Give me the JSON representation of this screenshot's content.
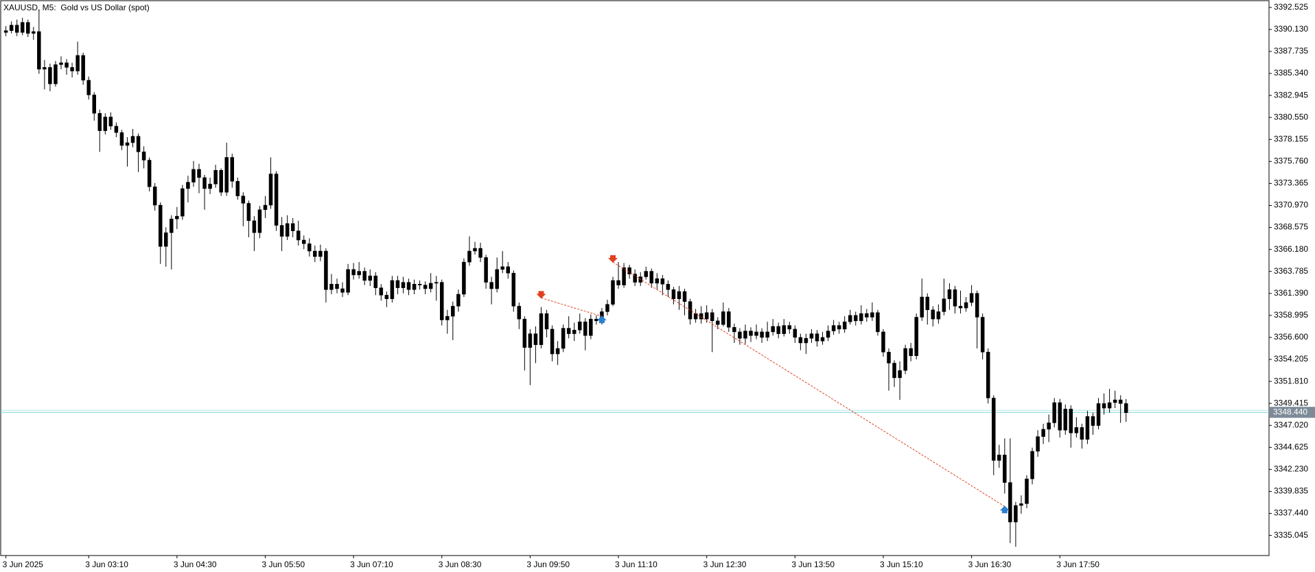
{
  "chart_data": {
    "type": "candlestick",
    "title": "XAUUSD, M5:  Gold vs US Dollar (spot)",
    "color": "#000000",
    "background": "#ffffff",
    "grid": false,
    "categories": [
      "3 Jun 2025",
      null,
      null,
      null,
      null,
      null,
      null,
      null,
      null,
      null,
      null,
      null,
      null,
      null,
      null,
      "3 Jun 03:10",
      null,
      null,
      null,
      null,
      null,
      null,
      null,
      null,
      null,
      null,
      null,
      null,
      null,
      null,
      null,
      "3 Jun 04:30",
      null,
      null,
      null,
      null,
      null,
      null,
      null,
      null,
      null,
      null,
      null,
      null,
      null,
      null,
      null,
      "3 Jun 05:50",
      null,
      null,
      null,
      null,
      null,
      null,
      null,
      null,
      null,
      null,
      null,
      null,
      null,
      null,
      null,
      "3 Jun 07:10",
      null,
      null,
      null,
      null,
      null,
      null,
      null,
      null,
      null,
      null,
      null,
      null,
      null,
      null,
      null,
      "3 Jun 08:30",
      null,
      null,
      null,
      null,
      null,
      null,
      null,
      null,
      null,
      null,
      null,
      null,
      null,
      null,
      null,
      "3 Jun 09:50",
      null,
      null,
      null,
      null,
      null,
      null,
      null,
      null,
      null,
      null,
      null,
      null,
      null,
      null,
      null,
      "3 Jun 11:10",
      null,
      null,
      null,
      null,
      null,
      null,
      null,
      null,
      null,
      null,
      null,
      null,
      null,
      null,
      null,
      "3 Jun 12:30",
      null,
      null,
      null,
      null,
      null,
      null,
      null,
      null,
      null,
      null,
      null,
      null,
      null,
      null,
      null,
      "3 Jun 13:50",
      null,
      null,
      null,
      null,
      null,
      null,
      null,
      null,
      null,
      null,
      null,
      null,
      null,
      null,
      null,
      "3 Jun 15:10",
      null,
      null,
      null,
      null,
      null,
      null,
      null,
      null,
      null,
      null,
      null,
      null,
      null,
      null,
      null,
      "3 Jun 16:30",
      null,
      null,
      null,
      null,
      null,
      null,
      null,
      null,
      null,
      null,
      null,
      null,
      null,
      null,
      null,
      "3 Jun 17:50",
      null,
      null,
      null,
      null,
      null,
      null,
      null,
      null,
      null,
      null,
      null,
      null
    ],
    "open": [
      3389.8,
      3390.0,
      3390.6,
      3389.8,
      3390.9,
      3389.7,
      3389.9,
      3385.8,
      3386.0,
      3384.2,
      3386.3,
      3386.5,
      3386.0,
      3385.6,
      3387.3,
      3384.6,
      3383.0,
      3381.0,
      3379.1,
      3380.6,
      3379.6,
      3378.9,
      3377.5,
      3377.8,
      3378.5,
      3376.8,
      3375.9,
      3373.0,
      3371.0,
      3366.5,
      3368.0,
      3369.5,
      3369.8,
      3372.8,
      3373.5,
      3374.9,
      3374.0,
      3372.8,
      3373.3,
      3374.8,
      3372.4,
      3376.2,
      3373.6,
      3372.0,
      3371.2,
      3369.3,
      3368.0,
      3370.5,
      3371.0,
      3374.4,
      3368.8,
      3367.6,
      3369.0,
      3368.2,
      3367.2,
      3366.8,
      3366.0,
      3365.4,
      3366.0,
      3361.8,
      3362.4,
      3361.9,
      3361.5,
      3364.0,
      3363.4,
      3363.8,
      3362.8,
      3363.3,
      3362.0,
      3361.2,
      3360.8,
      3362.8,
      3362.0,
      3362.6,
      3361.8,
      3362.4,
      3362.3,
      3361.9,
      3362.5,
      3362.6,
      3358.5,
      3358.9,
      3360.0,
      3361.3,
      3364.8,
      3366.0,
      3366.3,
      3365.3,
      3362.6,
      3361.9,
      3364.0,
      3364.3,
      3363.6,
      3360.0,
      3358.6,
      3355.5,
      3357.0,
      3355.8,
      3359.2,
      3357.5,
      3354.8,
      3355.4,
      3357.6,
      3357.0,
      3357.4,
      3358.3,
      3356.8,
      3358.6,
      3358.4,
      3359.4,
      3360.2,
      3362.8,
      3362.3,
      3364.2,
      3363.5,
      3362.6,
      3363.2,
      3363.8,
      3362.5,
      3363.0,
      3362.4,
      3361.8,
      3360.8,
      3361.6,
      3360.5,
      3358.6,
      3359.2,
      3358.6,
      3359.3,
      3358.4,
      3358.0,
      3359.4,
      3357.7,
      3357.2,
      3356.5,
      3357.3,
      3356.8,
      3357.2,
      3356.6,
      3357.2,
      3357.8,
      3357.0,
      3357.9,
      3357.5,
      3356.6,
      3356.0,
      3356.5,
      3357.0,
      3356.2,
      3356.6,
      3357.3,
      3357.9,
      3357.5,
      3358.3,
      3359.0,
      3358.4,
      3359.2,
      3358.8,
      3359.3,
      3357.2,
      3355.0,
      3353.8,
      3352.2,
      3353.0,
      3355.4,
      3354.6,
      3358.8,
      3361.0,
      3359.6,
      3358.6,
      3359.4,
      3360.8,
      3361.8,
      3360.0,
      3359.8,
      3360.4,
      3361.4,
      3358.8,
      3355.0,
      3350.0,
      3343.2,
      3343.8,
      3340.8,
      3336.5,
      3338.3,
      3338.5,
      3341.2,
      3344.2,
      3345.8,
      3346.6,
      3347.3,
      3349.5,
      3346.5,
      3348.8,
      3346.2,
      3346.8,
      3345.5,
      3348.0,
      3347.0,
      3349.4,
      3348.9,
      3349.5,
      3349.8,
      3349.4
    ],
    "high": [
      3390.5,
      3391.0,
      3391.2,
      3391.4,
      3391.2,
      3390.4,
      3392.3,
      3386.8,
      3386.4,
      3386.7,
      3387.2,
      3386.9,
      3386.5,
      3388.8,
      3387.6,
      3385.0,
      3383.3,
      3381.4,
      3381.0,
      3381.1,
      3380.0,
      3379.2,
      3378.4,
      3379.3,
      3378.8,
      3377.4,
      3376.2,
      3373.4,
      3371.3,
      3368.6,
      3369.9,
      3370.8,
      3373.2,
      3374.2,
      3375.8,
      3375.5,
      3374.3,
      3374.0,
      3375.4,
      3375.0,
      3377.8,
      3376.6,
      3374.0,
      3372.4,
      3371.5,
      3369.8,
      3370.9,
      3372.0,
      3376.2,
      3374.7,
      3369.7,
      3369.9,
      3369.6,
      3369.3,
      3367.7,
      3367.4,
      3366.6,
      3366.7,
      3366.3,
      3363.5,
      3363.0,
      3362.6,
      3364.6,
      3364.7,
      3364.8,
      3364.2,
      3364.0,
      3363.7,
      3362.4,
      3361.6,
      3363.3,
      3363.3,
      3363.2,
      3363.0,
      3362.9,
      3362.8,
      3362.7,
      3363.6,
      3363.3,
      3362.9,
      3359.6,
      3360.5,
      3361.8,
      3365.2,
      3367.6,
      3367.0,
      3366.9,
      3365.6,
      3363.2,
      3365.3,
      3366.0,
      3364.8,
      3363.9,
      3360.4,
      3358.9,
      3357.5,
      3357.8,
      3359.9,
      3359.6,
      3357.9,
      3356.2,
      3358.0,
      3358.9,
      3358.2,
      3359.2,
      3358.7,
      3359.1,
      3359.0,
      3359.8,
      3360.7,
      3363.2,
      3364.8,
      3364.7,
      3364.5,
      3364.0,
      3363.7,
      3364.3,
      3364.1,
      3363.6,
      3363.4,
      3362.8,
      3362.1,
      3362.2,
      3361.9,
      3360.8,
      3359.7,
      3360.0,
      3360.1,
      3359.7,
      3358.8,
      3360.4,
      3359.8,
      3358.1,
      3357.6,
      3358.0,
      3357.7,
      3358.0,
      3357.6,
      3358.3,
      3358.6,
      3358.2,
      3358.6,
      3358.3,
      3357.9,
      3357.0,
      3357.0,
      3357.5,
      3357.4,
      3357.2,
      3357.9,
      3358.5,
      3358.3,
      3358.9,
      3359.6,
      3359.4,
      3360.1,
      3359.7,
      3360.4,
      3359.6,
      3357.5,
      3355.4,
      3354.1,
      3354.0,
      3355.8,
      3356.0,
      3359.2,
      3363.0,
      3361.4,
      3360.0,
      3360.2,
      3363.0,
      3362.5,
      3362.2,
      3361.7,
      3361.0,
      3362.3,
      3361.7,
      3359.2,
      3355.4,
      3350.3,
      3344.9,
      3345.6,
      3345.6,
      3338.7,
      3339.4,
      3341.6,
      3344.6,
      3346.5,
      3347.2,
      3348.2,
      3350.0,
      3349.9,
      3349.3,
      3349.2,
      3347.9,
      3347.2,
      3348.6,
      3348.4,
      3350.0,
      3350.5,
      3351.0,
      3350.8,
      3350.3,
      3349.9
    ],
    "low": [
      3389.4,
      3389.7,
      3389.4,
      3389.5,
      3389.3,
      3389.0,
      3385.3,
      3383.6,
      3383.4,
      3383.9,
      3385.8,
      3385.2,
      3384.9,
      3385.2,
      3384.1,
      3382.5,
      3380.2,
      3376.8,
      3378.7,
      3379.2,
      3378.4,
      3377.0,
      3375.2,
      3377.3,
      3374.6,
      3375.0,
      3372.5,
      3370.4,
      3364.6,
      3364.3,
      3364.0,
      3368.4,
      3369.4,
      3371.3,
      3373.0,
      3372.3,
      3370.5,
      3372.2,
      3372.9,
      3372.0,
      3372.0,
      3372.9,
      3371.6,
      3368.7,
      3367.5,
      3366.0,
      3367.4,
      3369.6,
      3370.6,
      3368.2,
      3366.0,
      3367.2,
      3367.5,
      3366.6,
      3366.2,
      3365.4,
      3364.8,
      3364.9,
      3360.4,
      3361.3,
      3361.4,
      3361.0,
      3361.2,
      3362.9,
      3363.0,
      3362.3,
      3362.2,
      3361.2,
      3360.6,
      3359.9,
      3360.4,
      3361.3,
      3361.4,
      3361.2,
      3361.3,
      3361.8,
      3361.3,
      3361.5,
      3360.6,
      3357.9,
      3357.0,
      3356.3,
      3359.4,
      3361.0,
      3364.4,
      3365.6,
      3364.8,
      3361.9,
      3360.2,
      3361.5,
      3363.6,
      3363.0,
      3359.4,
      3357.5,
      3353.0,
      3351.4,
      3353.8,
      3355.4,
      3356.6,
      3354.0,
      3353.6,
      3355.0,
      3356.5,
      3356.2,
      3357.0,
      3355.2,
      3356.4,
      3358.0,
      3358.0,
      3359.0,
      3360.0,
      3361.9,
      3362.0,
      3363.0,
      3362.2,
      3362.2,
      3362.9,
      3362.0,
      3361.8,
      3361.2,
      3361.0,
      3360.2,
      3359.6,
      3359.0,
      3358.0,
      3358.2,
      3358.1,
      3358.2,
      3355.0,
      3357.5,
      3357.8,
      3357.2,
      3356.0,
      3355.8,
      3355.9,
      3356.1,
      3356.4,
      3356.0,
      3356.2,
      3356.8,
      3356.5,
      3356.7,
      3357.0,
      3356.0,
      3355.2,
      3354.8,
      3356.0,
      3355.6,
      3355.8,
      3356.2,
      3356.9,
      3357.0,
      3357.1,
      3358.0,
      3357.9,
      3358.0,
      3358.3,
      3358.4,
      3356.8,
      3354.5,
      3350.8,
      3351.2,
      3349.8,
      3352.6,
      3354.0,
      3354.2,
      3358.4,
      3358.0,
      3357.8,
      3358.1,
      3359.0,
      3359.6,
      3359.2,
      3359.2,
      3359.4,
      3360.0,
      3355.4,
      3354.2,
      3349.4,
      3341.6,
      3342.4,
      3339.6,
      3334.2,
      3333.8,
      3337.4,
      3338.0,
      3340.6,
      3343.6,
      3345.0,
      3345.2,
      3346.8,
      3345.7,
      3346.0,
      3344.6,
      3345.7,
      3344.5,
      3345.0,
      3346.0,
      3346.6,
      3348.2,
      3348.4,
      3348.9,
      3347.3,
      3347.4
    ],
    "close": [
      3390.0,
      3390.6,
      3389.8,
      3390.9,
      3389.7,
      3389.9,
      3385.8,
      3386.0,
      3384.2,
      3386.3,
      3386.5,
      3386.0,
      3385.6,
      3387.3,
      3384.6,
      3383.0,
      3381.0,
      3379.1,
      3380.6,
      3379.6,
      3378.9,
      3377.5,
      3377.8,
      3378.5,
      3376.8,
      3375.9,
      3373.0,
      3371.0,
      3366.5,
      3368.0,
      3369.5,
      3369.8,
      3372.8,
      3373.5,
      3374.9,
      3374.0,
      3372.8,
      3373.3,
      3374.8,
      3372.4,
      3376.2,
      3373.6,
      3372.0,
      3371.2,
      3369.3,
      3368.0,
      3370.5,
      3371.0,
      3374.4,
      3368.8,
      3367.6,
      3369.0,
      3368.2,
      3367.2,
      3366.8,
      3366.0,
      3365.4,
      3366.0,
      3361.8,
      3362.4,
      3361.9,
      3361.5,
      3364.0,
      3363.4,
      3363.8,
      3362.8,
      3363.3,
      3362.0,
      3361.2,
      3360.8,
      3362.8,
      3362.0,
      3362.6,
      3361.8,
      3362.4,
      3362.3,
      3361.9,
      3362.5,
      3362.6,
      3358.5,
      3358.9,
      3360.0,
      3361.3,
      3364.8,
      3366.0,
      3366.3,
      3365.3,
      3362.6,
      3361.9,
      3364.0,
      3364.3,
      3363.6,
      3360.0,
      3358.6,
      3355.5,
      3357.0,
      3355.8,
      3359.2,
      3357.5,
      3354.8,
      3355.4,
      3357.6,
      3357.0,
      3357.4,
      3358.3,
      3356.8,
      3358.6,
      3358.4,
      3359.4,
      3360.2,
      3362.8,
      3362.3,
      3364.2,
      3363.5,
      3362.6,
      3363.2,
      3363.8,
      3362.5,
      3363.0,
      3362.4,
      3361.8,
      3360.8,
      3361.6,
      3360.5,
      3358.6,
      3359.2,
      3358.6,
      3359.3,
      3358.4,
      3358.0,
      3359.4,
      3357.7,
      3357.2,
      3356.5,
      3357.3,
      3356.8,
      3357.2,
      3356.6,
      3357.2,
      3357.8,
      3357.0,
      3357.9,
      3357.5,
      3356.6,
      3356.0,
      3356.5,
      3357.0,
      3356.2,
      3356.6,
      3357.3,
      3357.9,
      3357.5,
      3358.3,
      3359.0,
      3358.4,
      3359.2,
      3358.8,
      3359.3,
      3357.2,
      3355.0,
      3353.8,
      3352.2,
      3353.0,
      3355.4,
      3354.6,
      3358.8,
      3361.0,
      3359.6,
      3358.6,
      3359.4,
      3360.8,
      3361.8,
      3360.0,
      3359.8,
      3360.4,
      3361.4,
      3358.8,
      3355.0,
      3350.0,
      3343.2,
      3343.8,
      3340.8,
      3336.5,
      3338.3,
      3338.5,
      3341.2,
      3344.2,
      3345.8,
      3346.6,
      3347.3,
      3349.5,
      3346.5,
      3348.8,
      3346.2,
      3346.8,
      3345.5,
      3348.0,
      3347.0,
      3349.4,
      3348.9,
      3349.5,
      3349.8,
      3349.4,
      3348.4
    ],
    "ylim": [
      3332.85,
      3393.26
    ],
    "yticks": [
      3392.525,
      {
        "value": 3390.13,
        "label": "3390.130"
      },
      3387.735,
      {
        "value": 3385.34,
        "label": "3385.340"
      },
      3382.945,
      {
        "value": 3380.55,
        "label": "3380.550"
      },
      3378.155,
      {
        "value": 3375.76,
        "label": "3375.760"
      },
      3373.365,
      {
        "value": 3370.97,
        "label": "3370.970"
      },
      3368.575,
      {
        "value": 3366.18,
        "label": "3366.180"
      },
      3363.785,
      {
        "value": 3361.39,
        "label": "3361.390"
      },
      3358.995,
      {
        "value": 3356.6,
        "label": "3356.600"
      },
      3354.205,
      {
        "value": 3351.81,
        "label": "3351.810"
      },
      3349.415,
      {
        "value": 3347.02,
        "label": "3347.020"
      },
      3344.625,
      {
        "value": 3342.23,
        "label": "3342.230"
      },
      3339.835,
      {
        "value": 3337.44,
        "label": "3337.440"
      },
      3335.045
    ],
    "price_line": {
      "value": 3348.44,
      "label": "3348.440",
      "color": "#7fd4d4",
      "label_color": "#7d8b99"
    },
    "trades": [
      {
        "entry": [
          97,
          3360.9
        ],
        "exit": [
          108,
          3358.9
        ]
      },
      {
        "entry": [
          110,
          3364.8
        ],
        "exit": [
          181,
          3338.2
        ]
      }
    ],
    "sell_color": "#e0401f",
    "buy_color": "#2f7fd0",
    "trade_line_color": "#e0401f"
  }
}
